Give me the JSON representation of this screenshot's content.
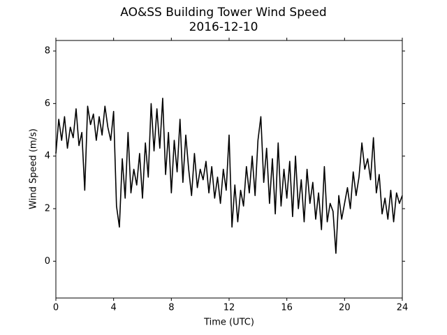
{
  "chart_data": {
    "type": "line",
    "title": "AO&SS Building Tower Wind Speed",
    "subtitle": "2016-12-10",
    "x_label": "Time (UTC)",
    "y_label": "Wind Speed (m/s)",
    "xlim": [
      0,
      24
    ],
    "xticks": [
      0,
      4,
      8,
      12,
      16,
      20,
      24
    ],
    "ylim": [
      -1.4,
      8.4
    ],
    "yticks": [
      0,
      2,
      4,
      6,
      8
    ],
    "x": [
      0,
      0.2,
      0.4,
      0.6,
      0.8,
      1,
      1.2,
      1.4,
      1.6,
      1.8,
      2,
      2.2,
      2.4,
      2.6,
      2.8,
      3,
      3.2,
      3.4,
      3.6,
      3.8,
      4,
      4.2,
      4.4,
      4.6,
      4.8,
      5,
      5.2,
      5.4,
      5.6,
      5.8,
      6,
      6.2,
      6.4,
      6.6,
      6.8,
      7,
      7.2,
      7.4,
      7.6,
      7.8,
      8,
      8.2,
      8.4,
      8.6,
      8.8,
      9,
      9.2,
      9.4,
      9.6,
      9.8,
      10,
      10.2,
      10.4,
      10.6,
      10.8,
      11,
      11.2,
      11.4,
      11.6,
      11.8,
      12,
      12.2,
      12.4,
      12.6,
      12.8,
      13,
      13.2,
      13.4,
      13.6,
      13.8,
      14,
      14.2,
      14.4,
      14.6,
      14.8,
      15,
      15.2,
      15.4,
      15.6,
      15.8,
      16,
      16.2,
      16.4,
      16.6,
      16.8,
      17,
      17.2,
      17.4,
      17.6,
      17.8,
      18,
      18.2,
      18.4,
      18.6,
      18.8,
      19,
      19.2,
      19.4,
      19.6,
      19.8,
      20,
      20.2,
      20.4,
      20.6,
      20.8,
      21,
      21.2,
      21.4,
      21.6,
      21.8,
      22,
      22.2,
      22.4,
      22.6,
      22.8,
      23,
      23.2,
      23.4,
      23.6,
      23.8,
      24
    ],
    "series": [
      {
        "name": "Wind Speed",
        "color": "#000000",
        "values": [
          4.1,
          5.4,
          4.6,
          5.5,
          4.3,
          5.1,
          4.7,
          5.8,
          4.4,
          4.9,
          2.7,
          5.9,
          5.2,
          5.6,
          4.6,
          5.5,
          4.8,
          5.9,
          5.1,
          4.6,
          5.7,
          2.1,
          1.3,
          3.9,
          2.4,
          4.9,
          2.6,
          3.5,
          2.9,
          4.1,
          2.4,
          4.5,
          3.2,
          6.0,
          4.2,
          5.8,
          4.3,
          6.2,
          3.3,
          4.9,
          2.6,
          4.6,
          3.4,
          5.4,
          3.0,
          4.8,
          3.5,
          2.5,
          4.1,
          2.8,
          3.5,
          3.1,
          3.8,
          2.6,
          3.6,
          2.4,
          3.2,
          2.2,
          3.5,
          2.7,
          4.8,
          1.3,
          2.9,
          1.5,
          2.7,
          2.1,
          3.6,
          2.6,
          4.0,
          2.5,
          4.6,
          5.5,
          3.0,
          4.3,
          2.2,
          3.9,
          1.8,
          4.5,
          2.1,
          3.5,
          2.4,
          3.8,
          1.7,
          4.0,
          2.0,
          3.1,
          1.5,
          3.5,
          2.2,
          3.0,
          1.6,
          2.6,
          1.2,
          3.6,
          1.5,
          2.2,
          1.9,
          0.3,
          2.5,
          1.6,
          2.2,
          2.8,
          2.0,
          3.4,
          2.5,
          3.2,
          4.5,
          3.5,
          3.9,
          3.1,
          4.7,
          2.6,
          3.3,
          1.8,
          2.4,
          1.6,
          2.7,
          1.5,
          2.6,
          2.2,
          2.5
        ]
      }
    ]
  }
}
